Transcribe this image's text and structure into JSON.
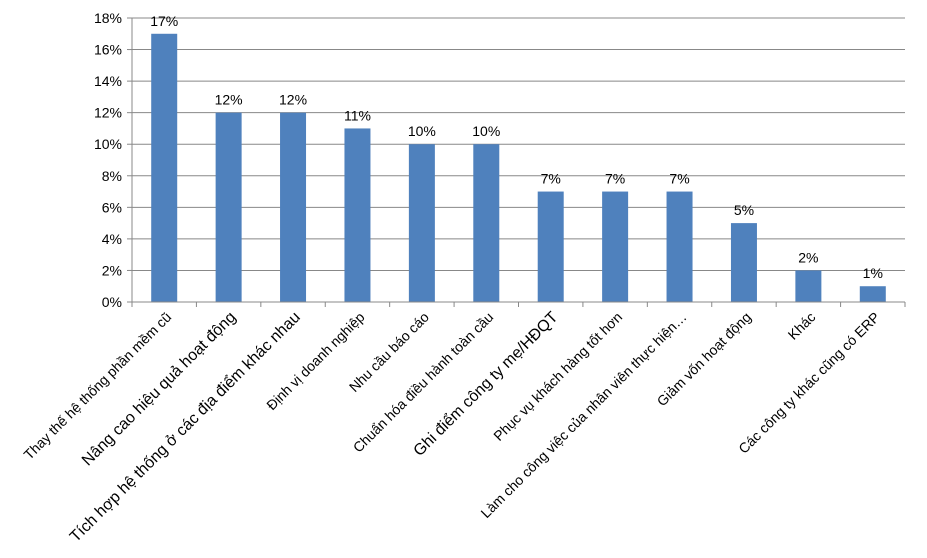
{
  "chart_data": {
    "type": "bar",
    "title": "",
    "xlabel": "",
    "ylabel": "",
    "ylim": [
      0,
      18
    ],
    "yticks": [
      "0%",
      "2%",
      "4%",
      "6%",
      "8%",
      "10%",
      "12%",
      "14%",
      "16%",
      "18%"
    ],
    "grid": true,
    "legend": "none",
    "bar_color": "#4f81bd",
    "categories": [
      "Thay thế hệ thống phần mềm cũ",
      "Nâng cao hiệu quả hoạt động",
      "Tích hợp hệ thống ở các địa điểm khác nhau",
      "Định vị doanh nghiệp",
      "Nhu cầu báo cáo",
      "Chuẩn hóa điều hành toàn cầu",
      "Ghi điểm công ty mẹ/HĐQT",
      "Phục vụ khách hàng tốt hơn",
      "Làm cho công việc của nhân viên thực hiện…",
      "Giảm vốn hoạt động",
      "Khác",
      "Các công ty khác cũng có ERP"
    ],
    "values": [
      17,
      12,
      12,
      11,
      10,
      10,
      7,
      7,
      7,
      5,
      2,
      1
    ],
    "data_labels": [
      "17%",
      "12%",
      "12%",
      "11%",
      "10%",
      "10%",
      "7%",
      "7%",
      "7%",
      "5%",
      "2%",
      "1%"
    ]
  }
}
